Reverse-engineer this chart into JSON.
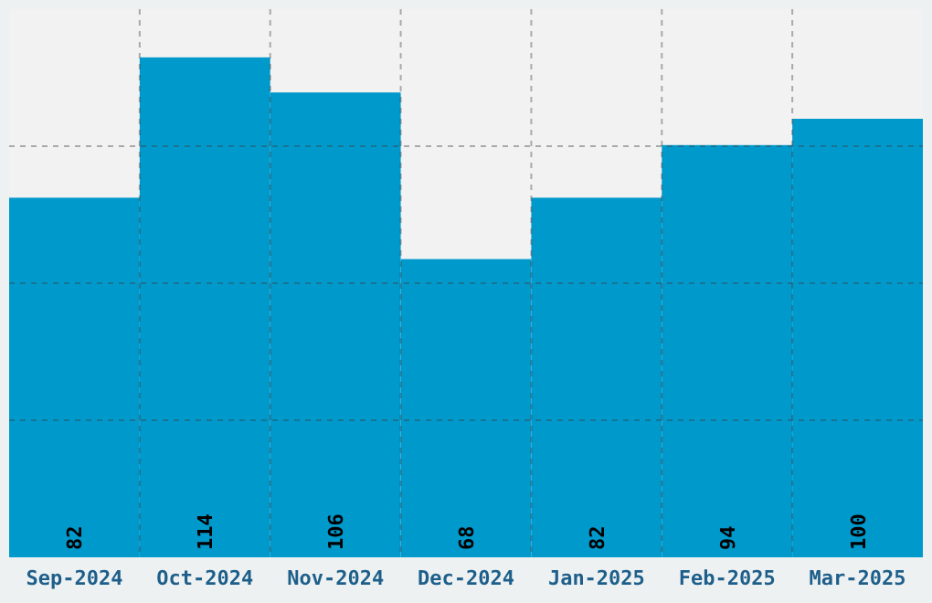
{
  "chart_data": {
    "type": "bar",
    "categories": [
      "Sep-2024",
      "Oct-2024",
      "Nov-2024",
      "Dec-2024",
      "Jan-2025",
      "Feb-2025",
      "Mar-2025"
    ],
    "values": [
      82,
      114,
      106,
      68,
      82,
      94,
      100
    ],
    "color": "#0099cc",
    "ylim": [
      0,
      125
    ],
    "yticks": [
      {
        "value": 31.25,
        "label": null
      },
      {
        "value": 62.5,
        "label": null
      },
      {
        "value": 93.75,
        "label": null
      }
    ],
    "grid": true,
    "data_labels": true,
    "tick_labels": "x"
  }
}
